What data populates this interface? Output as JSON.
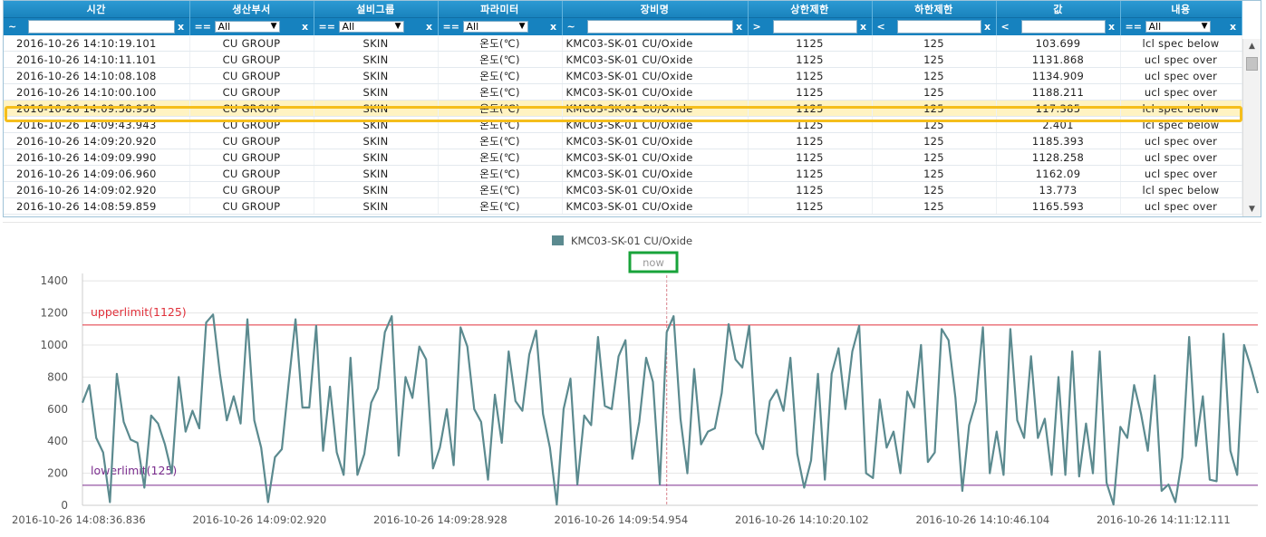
{
  "grid": {
    "columns": [
      {
        "key": "time",
        "label": "시간",
        "filter_op": "~",
        "filter_type": "input",
        "filter_value": ""
      },
      {
        "key": "dept",
        "label": "생산부서",
        "filter_op": "==",
        "filter_type": "select",
        "filter_value": "All"
      },
      {
        "key": "group",
        "label": "설비그룹",
        "filter_op": "==",
        "filter_type": "select",
        "filter_value": "All"
      },
      {
        "key": "param",
        "label": "파라미터",
        "filter_op": "==",
        "filter_type": "select",
        "filter_value": "All"
      },
      {
        "key": "equip",
        "label": "장비명",
        "filter_op": "~",
        "filter_type": "input",
        "filter_value": ""
      },
      {
        "key": "upper",
        "label": "상한제한",
        "filter_op": ">",
        "filter_type": "input",
        "filter_value": ""
      },
      {
        "key": "lower",
        "label": "하한제한",
        "filter_op": "<",
        "filter_type": "input",
        "filter_value": ""
      },
      {
        "key": "value",
        "label": "값",
        "filter_op": "<",
        "filter_type": "input",
        "filter_value": ""
      },
      {
        "key": "content",
        "label": "내용",
        "filter_op": "==",
        "filter_type": "select",
        "filter_value": "All"
      }
    ],
    "clear_symbol": "x",
    "selected_row": 4,
    "rows": [
      {
        "time": "2016-10-26 14:10:19.101",
        "dept": "CU GROUP",
        "group": "SKIN",
        "param": "온도(℃)",
        "equip": "KMC03-SK-01 CU/Oxide",
        "upper": "1125",
        "lower": "125",
        "value": "103.699",
        "content": "lcl spec below"
      },
      {
        "time": "2016-10-26 14:10:11.101",
        "dept": "CU GROUP",
        "group": "SKIN",
        "param": "온도(℃)",
        "equip": "KMC03-SK-01 CU/Oxide",
        "upper": "1125",
        "lower": "125",
        "value": "1131.868",
        "content": "ucl spec over"
      },
      {
        "time": "2016-10-26 14:10:08.108",
        "dept": "CU GROUP",
        "group": "SKIN",
        "param": "온도(℃)",
        "equip": "KMC03-SK-01 CU/Oxide",
        "upper": "1125",
        "lower": "125",
        "value": "1134.909",
        "content": "ucl spec over"
      },
      {
        "time": "2016-10-26 14:10:00.100",
        "dept": "CU GROUP",
        "group": "SKIN",
        "param": "온도(℃)",
        "equip": "KMC03-SK-01 CU/Oxide",
        "upper": "1125",
        "lower": "125",
        "value": "1188.211",
        "content": "ucl spec over"
      },
      {
        "time": "2016-10-26 14:09:58.958",
        "dept": "CU GROUP",
        "group": "SKIN",
        "param": "온도(℃)",
        "equip": "KMC03-SK-01 CU/Oxide",
        "upper": "1125",
        "lower": "125",
        "value": "117.385",
        "content": "lcl spec below"
      },
      {
        "time": "2016-10-26 14:09:43.943",
        "dept": "CU GROUP",
        "group": "SKIN",
        "param": "온도(℃)",
        "equip": "KMC03-SK-01 CU/Oxide",
        "upper": "1125",
        "lower": "125",
        "value": "2.401",
        "content": "lcl spec below"
      },
      {
        "time": "2016-10-26 14:09:20.920",
        "dept": "CU GROUP",
        "group": "SKIN",
        "param": "온도(℃)",
        "equip": "KMC03-SK-01 CU/Oxide",
        "upper": "1125",
        "lower": "125",
        "value": "1185.393",
        "content": "ucl spec over"
      },
      {
        "time": "2016-10-26 14:09:09.990",
        "dept": "CU GROUP",
        "group": "SKIN",
        "param": "온도(℃)",
        "equip": "KMC03-SK-01 CU/Oxide",
        "upper": "1125",
        "lower": "125",
        "value": "1128.258",
        "content": "ucl spec over"
      },
      {
        "time": "2016-10-26 14:09:06.960",
        "dept": "CU GROUP",
        "group": "SKIN",
        "param": "온도(℃)",
        "equip": "KMC03-SK-01 CU/Oxide",
        "upper": "1125",
        "lower": "125",
        "value": "1162.09",
        "content": "ucl spec over"
      },
      {
        "time": "2016-10-26 14:09:02.920",
        "dept": "CU GROUP",
        "group": "SKIN",
        "param": "온도(℃)",
        "equip": "KMC03-SK-01 CU/Oxide",
        "upper": "1125",
        "lower": "125",
        "value": "13.773",
        "content": "lcl spec below"
      },
      {
        "time": "2016-10-26 14:08:59.859",
        "dept": "CU GROUP",
        "group": "SKIN",
        "param": "온도(℃)",
        "equip": "KMC03-SK-01 CU/Oxide",
        "upper": "1125",
        "lower": "125",
        "value": "1165.593",
        "content": "ucl spec over"
      }
    ]
  },
  "chart_data": {
    "type": "line",
    "series": [
      {
        "name": "KMC03-SK-01 CU/Oxide",
        "color": "#5b8a8f",
        "values": [
          640,
          750,
          420,
          330,
          20,
          820,
          520,
          410,
          390,
          110,
          560,
          510,
          380,
          200,
          800,
          460,
          590,
          480,
          1140,
          1190,
          820,
          530,
          680,
          510,
          1160,
          530,
          360,
          20,
          300,
          350,
          760,
          1160,
          610,
          610,
          1120,
          340,
          740,
          330,
          190,
          920,
          190,
          320,
          640,
          730,
          1080,
          1180,
          310,
          800,
          670,
          990,
          910,
          230,
          360,
          600,
          250,
          1110,
          990,
          600,
          520,
          160,
          690,
          390,
          960,
          650,
          590,
          940,
          1090,
          570,
          360,
          5,
          600,
          790,
          130,
          560,
          500,
          1050,
          620,
          600,
          930,
          1030,
          290,
          520,
          920,
          770,
          130,
          1080,
          1180,
          540,
          200,
          850,
          380,
          460,
          480,
          700,
          1130,
          910,
          860,
          1120,
          450,
          350,
          650,
          720,
          590,
          920,
          320,
          110,
          280,
          820,
          160,
          820,
          980,
          600,
          960,
          1120,
          200,
          170,
          660,
          360,
          460,
          200,
          710,
          610,
          1000,
          270,
          330,
          1100,
          1030,
          670,
          90,
          500,
          650,
          1110,
          200,
          460,
          190,
          1100,
          530,
          420,
          930,
          420,
          540,
          190,
          800,
          190,
          960,
          180,
          510,
          200,
          960,
          140,
          5,
          490,
          420,
          750,
          570,
          340,
          810,
          90,
          130,
          20,
          300,
          1050,
          370,
          680,
          160,
          150,
          1070,
          340,
          190,
          1000,
          860,
          700
        ]
      }
    ],
    "x_tick_labels": [
      "2016-10-26 14:08:36.836",
      "2016-10-26 14:09:02.920",
      "2016-10-26 14:09:28.928",
      "2016-10-26 14:09:54.954",
      "2016-10-26 14:10:20.102",
      "2016-10-26 14:10:46.104",
      "2016-10-26 14:11:12.111"
    ],
    "y_ticks": [
      0,
      200,
      400,
      600,
      800,
      1000,
      1200,
      1400
    ],
    "ylim": [
      0,
      1480
    ],
    "upper_limit": {
      "label": "upperlimit(1125)",
      "value": 1125,
      "color": "#e0303a"
    },
    "lower_limit": {
      "label": "lowerlimit(125)",
      "value": 125,
      "color": "#7b2d8e"
    },
    "now_marker": {
      "label": "now",
      "index": 85,
      "color": "#d9808a"
    },
    "grid": true,
    "legend_position": "top-center"
  }
}
